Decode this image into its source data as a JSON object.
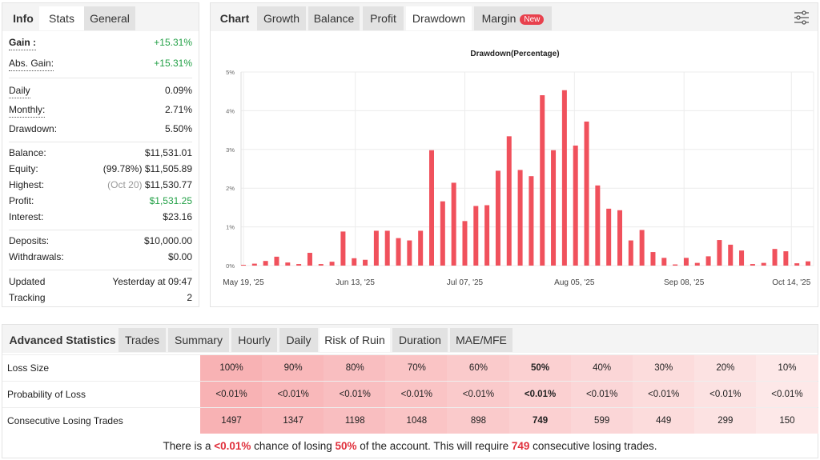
{
  "left_panel": {
    "tabs": [
      {
        "label": "Info"
      },
      {
        "label": "Stats"
      },
      {
        "label": "General"
      }
    ],
    "active_tab": "Stats",
    "stats": {
      "gain": {
        "label": "Gain :",
        "value": "+15.31%"
      },
      "abs_gain": {
        "label": "Abs. Gain:",
        "value": "+15.31%"
      },
      "daily": {
        "label": "Daily",
        "value": "0.09%"
      },
      "monthly": {
        "label": "Monthly:",
        "value": "2.71%"
      },
      "drawdown": {
        "label": "Drawdown:",
        "value": "5.50%"
      },
      "balance": {
        "label": "Balance:",
        "value": "$11,531.01"
      },
      "equity": {
        "label": "Equity:",
        "note": "(99.78%)",
        "value": "$11,505.89"
      },
      "highest": {
        "label": "Highest:",
        "note": "(Oct 20)",
        "value": "$11,530.77"
      },
      "profit": {
        "label": "Profit:",
        "value": "$1,531.25"
      },
      "interest": {
        "label": "Interest:",
        "value": "$23.16"
      },
      "deposits": {
        "label": "Deposits:",
        "value": "$10,000.00"
      },
      "withdrawals": {
        "label": "Withdrawals:",
        "value": "$0.00"
      },
      "updated": {
        "label": "Updated",
        "value": "Yesterday at 09:47"
      },
      "tracking": {
        "label": "Tracking",
        "value": "2"
      }
    }
  },
  "chart_panel": {
    "tabs": [
      {
        "label": "Chart"
      },
      {
        "label": "Growth"
      },
      {
        "label": "Balance"
      },
      {
        "label": "Profit"
      },
      {
        "label": "Drawdown"
      },
      {
        "label": "Margin",
        "badge": "New"
      }
    ],
    "active_tab": "Drawdown",
    "settings_icon": "sliders-icon"
  },
  "chart_data": {
    "type": "bar",
    "title": "Drawdown(Percentage)",
    "ylim": [
      0,
      5
    ],
    "yticks": [
      "0%",
      "1%",
      "2%",
      "3%",
      "4%",
      "5%"
    ],
    "xticks": [
      "May 19, '25",
      "Jun 13, '25",
      "Jul 07, '25",
      "Aug 05, '25",
      "Sep 08, '25",
      "Oct 14, '25"
    ],
    "grid": true,
    "color": "#f0515c",
    "values": [
      0.02,
      0.05,
      0.12,
      0.23,
      0.08,
      0.04,
      0.33,
      0.04,
      0.1,
      0.88,
      0.19,
      0.15,
      0.9,
      0.9,
      0.71,
      0.65,
      0.9,
      2.98,
      1.66,
      2.14,
      1.15,
      1.54,
      1.56,
      2.45,
      3.34,
      2.47,
      2.31,
      4.4,
      2.98,
      4.53,
      3.1,
      3.72,
      2.07,
      1.47,
      1.43,
      0.65,
      0.92,
      0.35,
      0.2,
      0.03,
      0.2,
      0.07,
      0.24,
      0.66,
      0.54,
      0.39,
      0.04,
      0.07,
      0.43,
      0.37,
      0.06,
      0.11
    ]
  },
  "advanced": {
    "title": "Advanced Statistics",
    "tabs": [
      {
        "label": "Trades"
      },
      {
        "label": "Summary"
      },
      {
        "label": "Hourly"
      },
      {
        "label": "Daily"
      },
      {
        "label": "Risk of Ruin"
      },
      {
        "label": "Duration"
      },
      {
        "label": "MAE/MFE"
      }
    ],
    "active_tab": "Risk of Ruin",
    "rows": [
      {
        "label": "Loss Size",
        "values": [
          "100%",
          "90%",
          "80%",
          "70%",
          "60%",
          "50%",
          "40%",
          "30%",
          "20%",
          "10%"
        ]
      },
      {
        "label": "Probability of Loss",
        "values": [
          "<0.01%",
          "<0.01%",
          "<0.01%",
          "<0.01%",
          "<0.01%",
          "<0.01%",
          "<0.01%",
          "<0.01%",
          "<0.01%",
          "<0.01%"
        ]
      },
      {
        "label": "Consecutive Losing Trades",
        "values": [
          "1497",
          "1347",
          "1198",
          "1048",
          "898",
          "749",
          "599",
          "449",
          "299",
          "150"
        ]
      }
    ],
    "highlight_column": "50%",
    "summary": {
      "t1": "There is a ",
      "prob": "<0.01%",
      "t2": " chance of losing ",
      "loss": "50%",
      "t3": " of the account. This will require ",
      "trades": "749",
      "t4": " consecutive losing trades."
    },
    "cell_color_start": "#f8b2b4",
    "cell_color_end": "#fde8e8"
  }
}
